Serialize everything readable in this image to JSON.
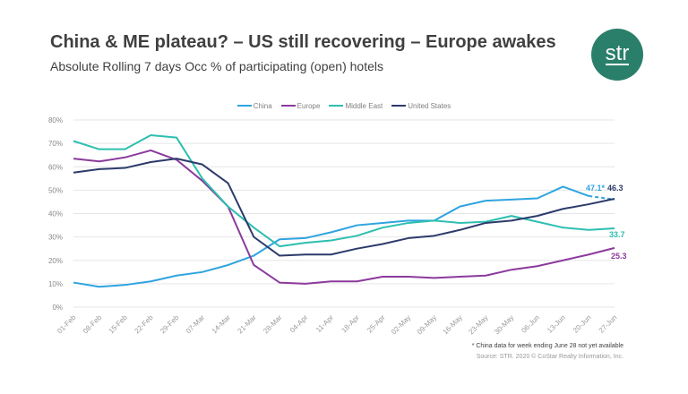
{
  "header": {
    "title": "China & ME plateau? – US still recovering – Europe awakes",
    "subtitle": "Absolute Rolling 7 days Occ % of participating (open) hotels",
    "logo_text": "str"
  },
  "chart_data": {
    "type": "line",
    "title": "",
    "xlabel": "",
    "ylabel": "",
    "ylim": [
      0,
      80
    ],
    "yticks": [
      "0%",
      "10%",
      "20%",
      "30%",
      "40%",
      "50%",
      "60%",
      "70%",
      "80%"
    ],
    "categories": [
      "01-Feb",
      "08-Feb",
      "15-Feb",
      "22-Feb",
      "29-Feb",
      "07-Mar",
      "14-Mar",
      "21-Mar",
      "28-Mar",
      "04-Apr",
      "11-Apr",
      "18-Apr",
      "25-Apr",
      "02-May",
      "09-May",
      "16-May",
      "23-May",
      "30-May",
      "06-Jun",
      "13-Jun",
      "20-Jun",
      "27-Jun"
    ],
    "grid": true,
    "legend": "top",
    "series": [
      {
        "name": "China",
        "color": "#2fa4e0",
        "values": [
          10.5,
          8.7,
          9.5,
          11,
          13.5,
          15,
          18,
          22,
          29,
          29.5,
          32,
          35,
          36,
          37,
          37,
          43,
          45.5,
          46,
          46.5,
          51.5,
          47.5,
          46
        ],
        "end_label": "47.1*",
        "dashed_last_segment": true
      },
      {
        "name": "Europe",
        "color": "#8b3a9c",
        "values": [
          63.5,
          62.3,
          64,
          67,
          63,
          54,
          43,
          18,
          10.5,
          10,
          11,
          11,
          13,
          13,
          12.5,
          13,
          13.5,
          16,
          17.5,
          20,
          22.5,
          25.3
        ],
        "end_label": "25.3"
      },
      {
        "name": "Middle East",
        "color": "#2dbfb0",
        "values": [
          71,
          67.5,
          67.5,
          73.5,
          72.5,
          55,
          43,
          34,
          26,
          27.5,
          28.5,
          30.5,
          34,
          36,
          37,
          36,
          36.5,
          39,
          36.5,
          34,
          33,
          33.7
        ],
        "end_label": "33.7"
      },
      {
        "name": "United States",
        "color": "#2c3a6b",
        "values": [
          57.5,
          59,
          59.5,
          62,
          63.5,
          61,
          53,
          30,
          22,
          22.5,
          22.5,
          25,
          27,
          29.5,
          30.5,
          33,
          36,
          37,
          39,
          42,
          44,
          46.3
        ],
        "end_label": "46.3"
      }
    ]
  },
  "footnote": "* China data for week ending June 28 not yet available",
  "source": "Source: STR. 2020 © CoStar Realty Information, Inc."
}
